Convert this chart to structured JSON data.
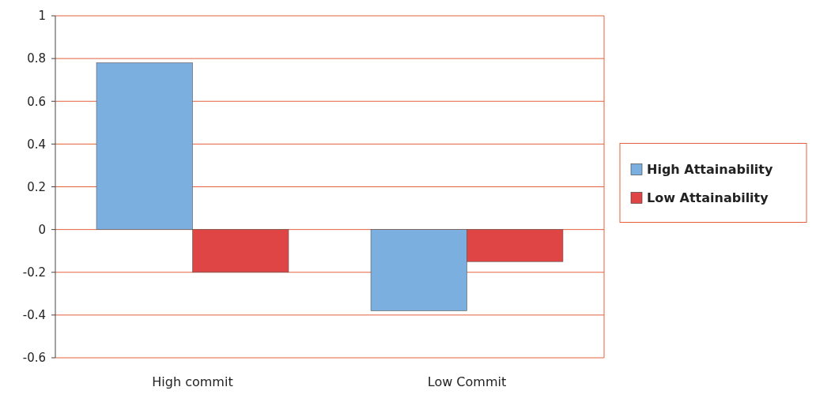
{
  "chart_data": {
    "type": "bar",
    "categories": [
      "High commit",
      "Low Commit"
    ],
    "series": [
      {
        "name": "High Attainability",
        "color": "#7aafe0",
        "values": [
          0.78,
          -0.38
        ]
      },
      {
        "name": "Low Attainability",
        "color": "#e04545",
        "values": [
          -0.2,
          -0.15
        ]
      }
    ],
    "ylim": [
      -0.6,
      1
    ],
    "yticks": [
      -0.6,
      -0.4,
      -0.2,
      0,
      0.2,
      0.4,
      0.6,
      0.8,
      1
    ],
    "grid": "y",
    "legend": "right"
  }
}
